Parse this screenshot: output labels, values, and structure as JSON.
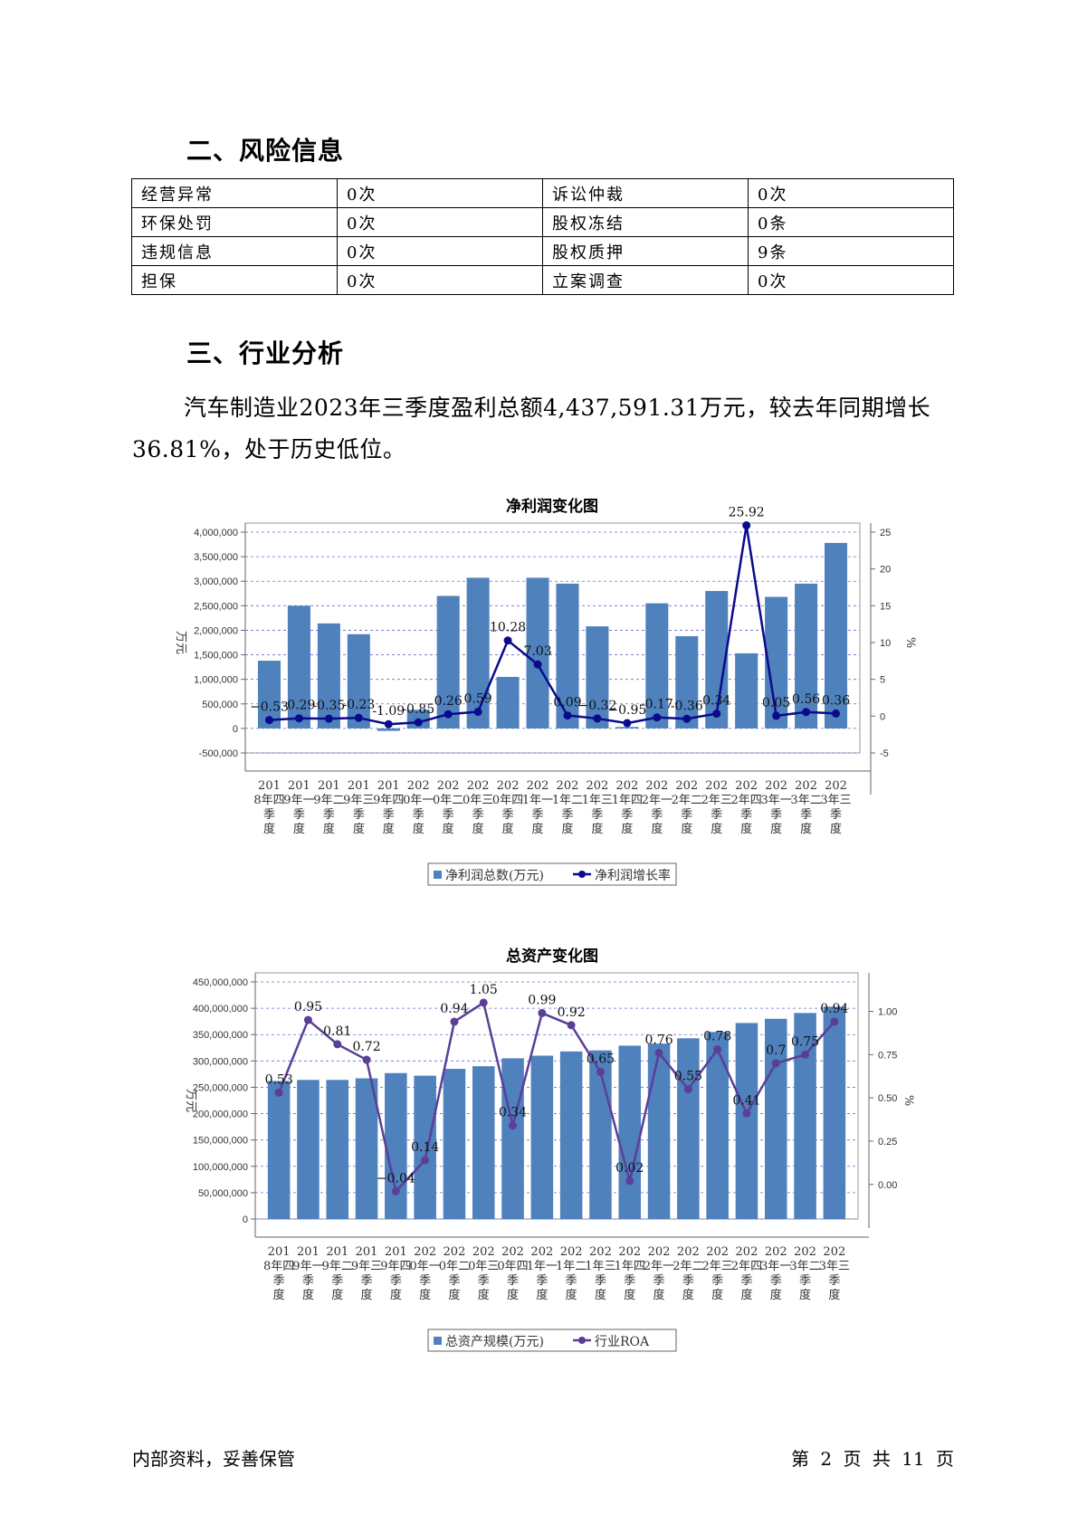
{
  "risk_section": {
    "title": "二、风险信息",
    "rows": [
      {
        "label1": "经营异常",
        "value1": "0次",
        "label2": "诉讼仲裁",
        "value2": "0次"
      },
      {
        "label1": "环保处罚",
        "value1": "0次",
        "label2": "股权冻结",
        "value2": "0条"
      },
      {
        "label1": "违规信息",
        "value1": "0次",
        "label2": "股权质押",
        "value2": "9条"
      },
      {
        "label1": "担保",
        "value1": "0次",
        "label2": "立案调查",
        "value2": "0次"
      }
    ]
  },
  "industry_section": {
    "title": "三、行业分析",
    "paragraph": "汽车制造业2023年三季度盈利总额4,437,591.31万元，较去年同期增长36.81%，处于历史低位。"
  },
  "chart_data": [
    {
      "type": "bar",
      "title": "净利润变化图",
      "categories": [
        "2018年四季度",
        "2019年一季度",
        "2019年二季度",
        "2019年三季度",
        "2019年四季度",
        "2020年一季度",
        "2020年二季度",
        "2020年三季度",
        "2020年四季度",
        "2021年一季度",
        "2021年二季度",
        "2021年三季度",
        "2021年四季度",
        "2022年一季度",
        "2022年二季度",
        "2022年三季度",
        "2022年四季度",
        "2023年一季度",
        "2023年二季度",
        "2023年三季度"
      ],
      "ylabel": "万元",
      "y2label": "%",
      "ylim": [
        -500000,
        4000000
      ],
      "y2lim": [
        -5,
        25
      ],
      "series": [
        {
          "name": "净利润总数(万元)",
          "axis": "left",
          "kind": "bar",
          "color": "#4f81bd",
          "values": [
            1380000,
            2500000,
            2140000,
            1920000,
            -50000,
            380000,
            2700000,
            3070000,
            1050000,
            3070000,
            2950000,
            2080000,
            30000,
            2550000,
            1880000,
            2800000,
            1530000,
            2680000,
            2950000,
            3780000
          ]
        },
        {
          "name": "净利润增长率",
          "axis": "right",
          "kind": "line",
          "color": "#0a0a8c",
          "values": [
            -0.53,
            -0.29,
            -0.35,
            -0.23,
            -1.09,
            -0.85,
            0.26,
            0.59,
            10.28,
            7.03,
            0.09,
            -0.32,
            -0.95,
            -0.17,
            -0.36,
            0.34,
            25.92,
            0.05,
            0.56,
            0.36
          ],
          "labels": [
            "−0.53",
            "-0.29",
            "-0.35",
            "-0.23",
            "-1.09",
            "-0.85",
            "0.26",
            "0.59",
            "10.28",
            "7.03",
            "0.09",
            "−0.32",
            "−0.95",
            "-0.17",
            "-0.36",
            "0.34",
            "25.92",
            "0.05",
            "0.56",
            "0.36"
          ]
        }
      ],
      "yticks": [
        "4,000,000",
        "3,500,000",
        "3,000,000",
        "2,500,000",
        "2,000,000",
        "1,500,000",
        "1,000,000",
        "500,000",
        "0",
        "-500,000"
      ],
      "y2ticks": [
        "25",
        "20",
        "15",
        "10",
        "5",
        "0",
        "-5"
      ],
      "legend_position": "bottom-center",
      "grid": true
    },
    {
      "type": "bar",
      "title": "总资产变化图",
      "categories": [
        "2018年四季度",
        "2019年一季度",
        "2019年二季度",
        "2019年三季度",
        "2019年四季度",
        "2020年一季度",
        "2020年二季度",
        "2020年三季度",
        "2020年四季度",
        "2021年一季度",
        "2021年二季度",
        "2021年三季度",
        "2021年四季度",
        "2022年一季度",
        "2022年二季度",
        "2022年三季度",
        "2022年四季度",
        "2023年一季度",
        "2023年二季度",
        "2023年三季度"
      ],
      "ylabel": "万元",
      "y2label": "%",
      "ylim": [
        0,
        450000000
      ],
      "y2lim": [
        -0.2,
        1.17
      ],
      "series": [
        {
          "name": "总资产规模(万元)",
          "axis": "left",
          "kind": "bar",
          "color": "#4f81bd",
          "values": [
            262000000,
            264000000,
            264000000,
            267000000,
            277000000,
            272000000,
            285000000,
            290000000,
            305000000,
            310000000,
            318000000,
            320000000,
            329000000,
            333000000,
            343000000,
            355000000,
            372000000,
            380000000,
            391000000,
            403000000
          ]
        },
        {
          "name": "行业ROA",
          "axis": "right",
          "kind": "line",
          "color": "#5a3f98",
          "values": [
            0.53,
            0.95,
            0.81,
            0.72,
            -0.04,
            0.14,
            0.94,
            1.05,
            0.34,
            0.99,
            0.92,
            0.65,
            0.02,
            0.76,
            0.55,
            0.78,
            0.41,
            0.7,
            0.75,
            0.94
          ],
          "labels": [
            "0.53",
            "0.95",
            "0.81",
            "0.72",
            "−0.04",
            "0.14",
            "0.94",
            "1.05",
            "0.34",
            "0.99",
            "0.92",
            "0.65",
            "0.02",
            "0.76",
            "0.55",
            "0.78",
            "0.41",
            "0.7",
            "0.75",
            "0.94"
          ]
        }
      ],
      "yticks": [
        "450,000,000",
        "400,000,000",
        "350,000,000",
        "300,000,000",
        "250,000,000",
        "200,000,000",
        "150,000,000",
        "100,000,000",
        "50,000,000",
        "0"
      ],
      "y2ticks": [
        "1.00",
        "0.75",
        "0.50",
        "0.25",
        "0.00"
      ],
      "legend_position": "bottom-center",
      "grid": true
    }
  ],
  "footer": {
    "left": "内部资料，妥善保管",
    "right": "第 2 页  共 11 页"
  }
}
